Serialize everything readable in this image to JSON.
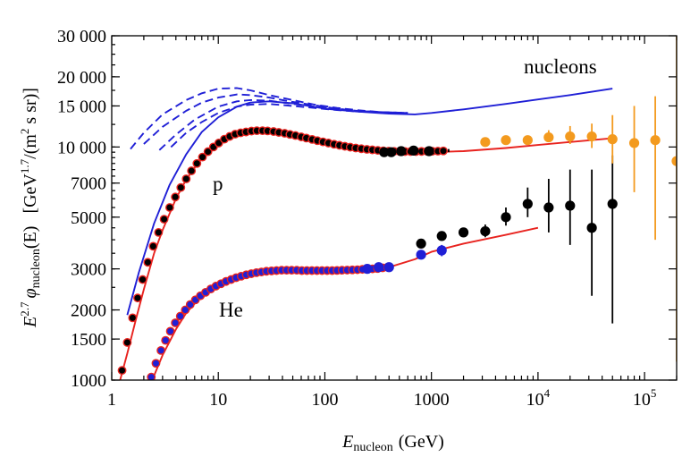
{
  "chart_data": {
    "type": "scatter",
    "title": "",
    "xlabel": {
      "symbol": "E",
      "subscript": "nucleon",
      "unit": "(GeV)"
    },
    "ylabel": {
      "prefix": "E",
      "power": "2.7",
      "symbol": "φ",
      "subscript": "nucleon",
      "arg": "(E)",
      "unit_open": "[GeV",
      "unit_power": "1.7",
      "unit_rest": "/(m",
      "unit_power2": "2",
      "unit_close": " s sr)]"
    },
    "x_scale": "log",
    "y_scale": "log",
    "xlim": [
      1,
      200000
    ],
    "ylim": [
      1000,
      30000
    ],
    "x_ticks": [
      {
        "value": 1,
        "base": "1",
        "exp": ""
      },
      {
        "value": 10,
        "base": "10",
        "exp": ""
      },
      {
        "value": 100,
        "base": "100",
        "exp": ""
      },
      {
        "value": 1000,
        "base": "1000",
        "exp": ""
      },
      {
        "value": 10000,
        "base": "10",
        "exp": "4"
      },
      {
        "value": 100000,
        "base": "10",
        "exp": "5"
      }
    ],
    "y_ticks": [
      {
        "value": 1000,
        "label": "1000"
      },
      {
        "value": 1500,
        "label": "1500"
      },
      {
        "value": 2000,
        "label": "2000"
      },
      {
        "value": 3000,
        "label": "3000"
      },
      {
        "value": 5000,
        "label": "5000"
      },
      {
        "value": 7000,
        "label": "7000"
      },
      {
        "value": 10000,
        "label": "10 000"
      },
      {
        "value": 15000,
        "label": "15 000"
      },
      {
        "value": 20000,
        "label": "20 000"
      },
      {
        "value": 30000,
        "label": "30 000"
      }
    ],
    "annotations": [
      {
        "text": "nucleons",
        "x": 12000,
        "y": 19500
      },
      {
        "text": "p",
        "x": 9.5,
        "y": 6200
      },
      {
        "text": "He",
        "x": 12.5,
        "y": 1950
      }
    ],
    "colors": {
      "red": "#e8231f",
      "blue": "#1f1fd6",
      "black": "#000000",
      "orange": "#f39a1e"
    },
    "lines": [
      {
        "name": "nucleons-total",
        "color": "blue",
        "dash": false,
        "x": [
          1.4,
          1.8,
          2.5,
          3.5,
          5,
          7,
          10,
          15,
          20,
          30,
          50,
          100,
          200,
          400,
          700,
          1000,
          2000,
          5000,
          10000,
          20000,
          50000
        ],
        "y": [
          1900,
          2900,
          4700,
          6900,
          9300,
          11600,
          13400,
          14900,
          15500,
          15700,
          15400,
          14600,
          14200,
          13900,
          13800,
          14000,
          14500,
          15300,
          16000,
          16700,
          17800
        ]
      },
      {
        "name": "nucleons-dash-1",
        "color": "blue",
        "dash": true,
        "x": [
          1.5,
          2,
          3,
          5,
          7,
          10,
          15,
          20,
          30,
          50,
          80,
          130,
          200,
          350,
          600
        ],
        "y": [
          9800,
          11500,
          13800,
          15900,
          17000,
          17800,
          17900,
          17500,
          16700,
          15900,
          15200,
          14700,
          14400,
          14100,
          14000
        ]
      },
      {
        "name": "nucleons-dash-2",
        "color": "blue",
        "dash": true,
        "x": [
          2.0,
          3,
          5,
          7,
          10,
          15,
          20,
          30,
          50,
          80,
          130,
          200,
          350,
          600
        ],
        "y": [
          10300,
          12200,
          14300,
          15500,
          16300,
          16800,
          16700,
          16300,
          15600,
          15100,
          14600,
          14300,
          14100,
          14000
        ]
      },
      {
        "name": "nucleons-dash-3",
        "color": "blue",
        "dash": true,
        "x": [
          2.8,
          4,
          6,
          10,
          15,
          20,
          30,
          50,
          80,
          130,
          200,
          350,
          600
        ],
        "y": [
          9700,
          11300,
          13100,
          14900,
          15700,
          15900,
          15800,
          15300,
          14900,
          14500,
          14300,
          14100,
          14000
        ]
      },
      {
        "name": "nucleons-dash-4",
        "color": "blue",
        "dash": true,
        "x": [
          3.6,
          5,
          7,
          10,
          15,
          20,
          30,
          50,
          80,
          130,
          200,
          350,
          600
        ],
        "y": [
          10000,
          11500,
          12800,
          14000,
          14900,
          15200,
          15300,
          15000,
          14700,
          14400,
          14200,
          14100,
          14000
        ]
      },
      {
        "name": "proton-fit",
        "color": "red",
        "dash": false,
        "x": [
          1.2,
          1.4,
          1.7,
          2,
          2.5,
          3,
          4,
          5,
          7,
          10,
          15,
          20,
          30,
          40,
          60,
          100,
          200,
          400,
          700,
          1000,
          2000,
          5000,
          10000,
          20000,
          50000
        ],
        "y": [
          1000,
          1300,
          1850,
          2450,
          3500,
          4400,
          6000,
          7250,
          9000,
          10500,
          11500,
          11750,
          11700,
          11450,
          11000,
          10400,
          9950,
          9700,
          9550,
          9500,
          9600,
          9900,
          10200,
          10500,
          10900
        ]
      },
      {
        "name": "helium-fit",
        "color": "red",
        "dash": false,
        "x": [
          2.4,
          3,
          4,
          5,
          7,
          10,
          15,
          20,
          30,
          50,
          100,
          200,
          400,
          700,
          1000,
          2000,
          5000,
          10000
        ],
        "y": [
          1000,
          1280,
          1650,
          1940,
          2300,
          2580,
          2780,
          2870,
          2930,
          2950,
          2950,
          2980,
          3050,
          3300,
          3550,
          3850,
          4200,
          4500
        ]
      }
    ],
    "series": [
      {
        "name": "proton-data",
        "color": "black",
        "ring": "red",
        "points": [
          [
            1.25,
            1100
          ],
          [
            1.4,
            1450
          ],
          [
            1.57,
            1850
          ],
          [
            1.75,
            2250
          ],
          [
            1.95,
            2700
          ],
          [
            2.18,
            3200
          ],
          [
            2.45,
            3750
          ],
          [
            2.75,
            4300
          ],
          [
            3.1,
            4900
          ],
          [
            3.5,
            5500
          ],
          [
            3.95,
            6100
          ],
          [
            4.45,
            6700
          ],
          [
            5.0,
            7300
          ],
          [
            5.6,
            7900
          ],
          [
            6.3,
            8500
          ],
          [
            7.1,
            9050
          ],
          [
            8.0,
            9550
          ],
          [
            9.0,
            10000
          ],
          [
            10.1,
            10400
          ],
          [
            11.4,
            10800
          ],
          [
            12.8,
            11100
          ],
          [
            14.4,
            11350
          ],
          [
            16.2,
            11500
          ],
          [
            18.2,
            11600
          ],
          [
            20.5,
            11700
          ],
          [
            23,
            11750
          ],
          [
            26,
            11750
          ],
          [
            29,
            11720
          ],
          [
            33,
            11650
          ],
          [
            37,
            11550
          ],
          [
            42,
            11450
          ],
          [
            47,
            11330
          ],
          [
            53,
            11200
          ],
          [
            60,
            11050
          ],
          [
            67,
            10920
          ],
          [
            76,
            10780
          ],
          [
            85,
            10650
          ],
          [
            96,
            10520
          ],
          [
            108,
            10400
          ],
          [
            122,
            10280
          ],
          [
            137,
            10170
          ],
          [
            154,
            10070
          ],
          [
            173,
            9980
          ],
          [
            195,
            9900
          ],
          [
            220,
            9830
          ],
          [
            248,
            9770
          ],
          [
            279,
            9720
          ],
          [
            314,
            9670
          ],
          [
            353,
            9630
          ],
          [
            397,
            9600
          ],
          [
            447,
            9580
          ],
          [
            503,
            9570
          ],
          [
            566,
            9560
          ],
          [
            637,
            9560
          ],
          [
            717,
            9560
          ],
          [
            807,
            9570
          ],
          [
            908,
            9580
          ],
          [
            1022,
            9590
          ],
          [
            1150,
            9600
          ],
          [
            1294,
            9620
          ]
        ],
        "err": [
          [
            1450,
            9500,
            9800
          ]
        ]
      },
      {
        "name": "proton-data-high",
        "color": "black",
        "ring": null,
        "points": [
          [
            360,
            9500
          ],
          [
            420,
            9500
          ],
          [
            520,
            9600
          ],
          [
            680,
            9650
          ],
          [
            950,
            9600
          ]
        ],
        "err": []
      },
      {
        "name": "helium-data",
        "color": "blue",
        "ring": "red",
        "points": [
          [
            2.35,
            1030
          ],
          [
            2.6,
            1180
          ],
          [
            2.9,
            1340
          ],
          [
            3.2,
            1480
          ],
          [
            3.55,
            1620
          ],
          [
            3.95,
            1760
          ],
          [
            4.4,
            1880
          ],
          [
            4.9,
            2000
          ],
          [
            5.45,
            2110
          ],
          [
            6.1,
            2210
          ],
          [
            6.8,
            2300
          ],
          [
            7.6,
            2380
          ],
          [
            8.5,
            2460
          ],
          [
            9.5,
            2530
          ],
          [
            10.6,
            2590
          ],
          [
            11.8,
            2650
          ],
          [
            13.2,
            2700
          ],
          [
            14.7,
            2750
          ],
          [
            16.4,
            2790
          ],
          [
            18.3,
            2830
          ],
          [
            20.4,
            2860
          ],
          [
            22.8,
            2890
          ],
          [
            25.4,
            2910
          ],
          [
            28.3,
            2930
          ],
          [
            31.6,
            2940
          ],
          [
            35.2,
            2950
          ],
          [
            39.3,
            2960
          ],
          [
            43.8,
            2960
          ],
          [
            48.8,
            2960
          ],
          [
            54.5,
            2960
          ],
          [
            60.8,
            2950
          ],
          [
            67.8,
            2950
          ],
          [
            75.6,
            2950
          ],
          [
            84.3,
            2950
          ],
          [
            94.0,
            2950
          ],
          [
            105,
            2950
          ],
          [
            117,
            2950
          ],
          [
            130,
            2955
          ],
          [
            145,
            2960
          ],
          [
            162,
            2965
          ],
          [
            181,
            2970
          ],
          [
            202,
            2975
          ],
          [
            225,
            2985
          ],
          [
            251,
            2990
          ],
          [
            280,
            3000
          ],
          [
            312,
            3010
          ],
          [
            348,
            3030
          ],
          [
            388,
            3050
          ]
        ],
        "err": []
      },
      {
        "name": "helium-data-high",
        "color": "blue",
        "ring": null,
        "points": [
          [
            250,
            3000
          ],
          [
            320,
            3050
          ],
          [
            400,
            3050
          ],
          [
            800,
            3450
          ],
          [
            1250,
            3600
          ]
        ],
        "err": [
          [
            1250,
            3400,
            3800
          ]
        ]
      },
      {
        "name": "helium-black-data",
        "color": "black",
        "ring": null,
        "points": [
          [
            800,
            3850
          ],
          [
            1250,
            4150
          ],
          [
            2000,
            4300
          ],
          [
            3200,
            4350
          ],
          [
            5000,
            5000
          ],
          [
            8000,
            5700
          ],
          [
            12600,
            5500
          ],
          [
            20000,
            5600
          ],
          [
            32000,
            4500
          ],
          [
            50000,
            5700
          ]
        ],
        "err": [
          [
            3200,
            4100,
            4650
          ],
          [
            5000,
            4600,
            5500
          ],
          [
            8000,
            5000,
            6700
          ],
          [
            12600,
            4300,
            7300
          ],
          [
            20000,
            3800,
            8000
          ],
          [
            32000,
            2300,
            8000
          ],
          [
            50000,
            1750,
            9200
          ]
        ]
      },
      {
        "name": "nucleon-orange-data",
        "color": "orange",
        "ring": null,
        "points": [
          [
            3200,
            10500
          ],
          [
            5000,
            10700
          ],
          [
            8000,
            10700
          ],
          [
            12600,
            11000
          ],
          [
            20000,
            11100
          ],
          [
            32000,
            11100
          ],
          [
            50000,
            10800
          ],
          [
            80000,
            10400
          ],
          [
            126000,
            10700
          ],
          [
            200000,
            8700
          ]
        ],
        "err": [
          [
            12600,
            10500,
            11800
          ],
          [
            20000,
            10300,
            12300
          ],
          [
            32000,
            9900,
            12600
          ],
          [
            50000,
            8500,
            13700
          ],
          [
            80000,
            6400,
            15000
          ],
          [
            126000,
            4000,
            16500
          ],
          [
            200000,
            1200,
            30000
          ]
        ]
      }
    ]
  }
}
